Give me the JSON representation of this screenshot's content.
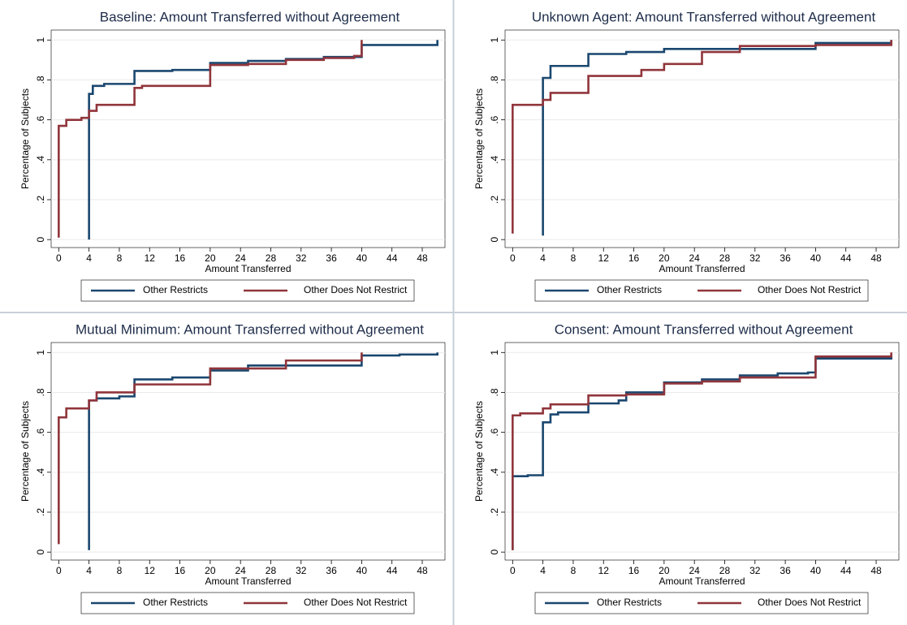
{
  "chart_data": [
    {
      "type": "line",
      "step": true,
      "title": "Baseline: Amount Transferred without Agreement",
      "xlabel": "Amount Transferred",
      "ylabel": "Percentage of Subjects",
      "xlim": [
        -1,
        51
      ],
      "ylim": [
        -0.04,
        1.05
      ],
      "grid": true,
      "legend": "bottom",
      "xticks": [
        0,
        4,
        8,
        12,
        16,
        20,
        24,
        28,
        32,
        36,
        40,
        44,
        48
      ],
      "yticks": [
        0,
        {
          "value": 0.2,
          "label": ".2"
        },
        {
          "value": 0.4,
          "label": ".4"
        },
        {
          "value": 0.6,
          "label": ".6"
        },
        {
          "value": 0.8,
          "label": ".8"
        },
        1
      ],
      "series": [
        {
          "name": "Other Restricts",
          "color": "#1a476f",
          "x": [
            4,
            4,
            4.5,
            6,
            10,
            15,
            20,
            25,
            30,
            35,
            40,
            50
          ],
          "values": [
            0.0,
            0.73,
            0.77,
            0.78,
            0.845,
            0.85,
            0.885,
            0.895,
            0.905,
            0.915,
            0.975,
            1.0
          ]
        },
        {
          "name": "Other Does Not Restrict",
          "color": "#90353b",
          "x": [
            0,
            0,
            1,
            3,
            4,
            5,
            10,
            11,
            20,
            25,
            30,
            35,
            39,
            40
          ],
          "values": [
            0.01,
            0.57,
            0.6,
            0.61,
            0.645,
            0.675,
            0.76,
            0.77,
            0.875,
            0.88,
            0.9,
            0.91,
            0.92,
            1.0
          ]
        }
      ]
    },
    {
      "type": "line",
      "step": true,
      "title": "Unknown Agent: Amount Transferred without Agreement",
      "xlabel": "Amount Transferred",
      "ylabel": "Percentage of Subjects",
      "xlim": [
        -1,
        51
      ],
      "ylim": [
        -0.04,
        1.05
      ],
      "grid": true,
      "legend": "bottom",
      "xticks": [
        0,
        4,
        8,
        12,
        16,
        20,
        24,
        28,
        32,
        36,
        40,
        44,
        48
      ],
      "yticks": [
        0,
        {
          "value": 0.2,
          "label": ".2"
        },
        {
          "value": 0.4,
          "label": ".4"
        },
        {
          "value": 0.6,
          "label": ".6"
        },
        {
          "value": 0.8,
          "label": ".8"
        },
        1
      ],
      "series": [
        {
          "name": "Other Restricts",
          "color": "#1a476f",
          "x": [
            4,
            4,
            5,
            10,
            15,
            20,
            40,
            50
          ],
          "values": [
            0.02,
            0.81,
            0.87,
            0.93,
            0.94,
            0.955,
            0.985,
            1.0
          ]
        },
        {
          "name": "Other Does Not Restrict",
          "color": "#90353b",
          "x": [
            0,
            0,
            4,
            5,
            10,
            17,
            20,
            25,
            30,
            40,
            50
          ],
          "values": [
            0.03,
            0.675,
            0.7,
            0.735,
            0.82,
            0.85,
            0.88,
            0.94,
            0.97,
            0.975,
            1.0
          ]
        }
      ]
    },
    {
      "type": "line",
      "step": true,
      "title": "Mutual Minimum: Amount Transferred without Agreement",
      "xlabel": "Amount Transferred",
      "ylabel": "Percentage of Subjects",
      "xlim": [
        -1,
        51
      ],
      "ylim": [
        -0.04,
        1.05
      ],
      "grid": true,
      "legend": "bottom",
      "xticks": [
        0,
        4,
        8,
        12,
        16,
        20,
        24,
        28,
        32,
        36,
        40,
        44,
        48
      ],
      "yticks": [
        0,
        {
          "value": 0.2,
          "label": ".2"
        },
        {
          "value": 0.4,
          "label": ".4"
        },
        {
          "value": 0.6,
          "label": ".6"
        },
        {
          "value": 0.8,
          "label": ".8"
        },
        1
      ],
      "series": [
        {
          "name": "Other Restricts",
          "color": "#1a476f",
          "x": [
            4,
            4,
            5,
            8,
            10,
            15,
            20,
            25,
            40,
            45,
            50
          ],
          "values": [
            0.01,
            0.76,
            0.77,
            0.78,
            0.865,
            0.875,
            0.91,
            0.935,
            0.985,
            0.99,
            1.0
          ]
        },
        {
          "name": "Other Does Not Restrict",
          "color": "#90353b",
          "x": [
            0,
            0,
            1,
            4,
            5,
            10,
            20,
            30,
            40
          ],
          "values": [
            0.04,
            0.675,
            0.72,
            0.76,
            0.8,
            0.84,
            0.92,
            0.96,
            1.0
          ]
        }
      ]
    },
    {
      "type": "line",
      "step": true,
      "title": "Consent: Amount Transferred without Agreement",
      "xlabel": "Amount Transferred",
      "ylabel": "Percentage of Subjects",
      "xlim": [
        -1,
        51
      ],
      "ylim": [
        -0.04,
        1.05
      ],
      "grid": true,
      "legend": "bottom",
      "xticks": [
        0,
        4,
        8,
        12,
        16,
        20,
        24,
        28,
        32,
        36,
        40,
        44,
        48
      ],
      "yticks": [
        0,
        {
          "value": 0.2,
          "label": ".2"
        },
        {
          "value": 0.4,
          "label": ".4"
        },
        {
          "value": 0.6,
          "label": ".6"
        },
        {
          "value": 0.8,
          "label": ".8"
        },
        1
      ],
      "series": [
        {
          "name": "Other Restricts",
          "color": "#1a476f",
          "x": [
            0,
            0,
            2,
            4,
            5,
            6,
            10,
            14,
            15,
            20,
            25,
            30,
            35,
            39,
            40,
            50
          ],
          "values": [
            0.01,
            0.38,
            0.385,
            0.65,
            0.69,
            0.7,
            0.745,
            0.76,
            0.8,
            0.85,
            0.865,
            0.885,
            0.895,
            0.9,
            0.97,
            0.99
          ]
        },
        {
          "name": "Other Does Not Restrict",
          "color": "#90353b",
          "x": [
            0,
            0,
            1,
            4,
            5,
            10,
            15,
            20,
            25,
            30,
            40,
            50
          ],
          "values": [
            0.01,
            0.685,
            0.695,
            0.72,
            0.74,
            0.785,
            0.79,
            0.845,
            0.855,
            0.875,
            0.98,
            1.0
          ]
        }
      ]
    }
  ]
}
